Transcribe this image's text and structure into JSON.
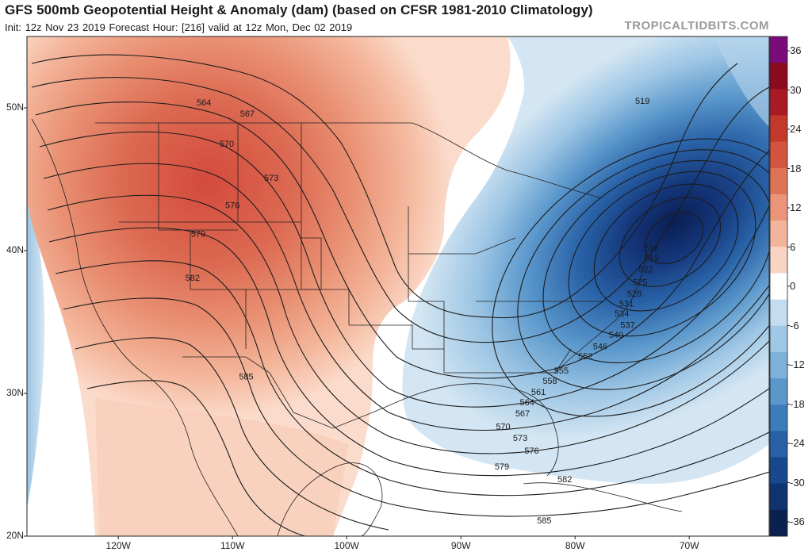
{
  "header": {
    "title": "GFS 500mb Geopotential Height & Anomaly (dam) (based on CFSR 1981-2010 Climatology)",
    "subtitle": "Init: 12z Nov 23 2019   Forecast Hour: [216]   valid at 12z Mon, Dec 02 2019",
    "credit": "TROPICALTIDBITS.COM"
  },
  "map": {
    "extent": {
      "lon_min": -128,
      "lon_max": -63,
      "lat_min": 20,
      "lat_max": 55
    },
    "lat_labels": [
      {
        "text": "50N",
        "lat": 50
      },
      {
        "text": "40N",
        "lat": 40
      },
      {
        "text": "30N",
        "lat": 30
      },
      {
        "text": "20N",
        "lat": 20
      }
    ],
    "lon_labels": [
      {
        "text": "120W",
        "lon": -120
      },
      {
        "text": "110W",
        "lon": -110
      },
      {
        "text": "100W",
        "lon": -100
      },
      {
        "text": "90W",
        "lon": -90
      },
      {
        "text": "80W",
        "lon": -80
      },
      {
        "text": "70W",
        "lon": -70
      }
    ],
    "height_contour_labels": [
      {
        "text": "564",
        "lon": -112.5,
        "lat": 50.4
      },
      {
        "text": "567",
        "lon": -108.7,
        "lat": 49.6
      },
      {
        "text": "570",
        "lon": -110.5,
        "lat": 47.5
      },
      {
        "text": "573",
        "lon": -106.6,
        "lat": 45.1
      },
      {
        "text": "576",
        "lon": -110.0,
        "lat": 43.2
      },
      {
        "text": "579",
        "lon": -113.0,
        "lat": 41.2
      },
      {
        "text": "582",
        "lon": -113.5,
        "lat": 38.1
      },
      {
        "text": "585",
        "lon": -108.8,
        "lat": 31.2
      },
      {
        "text": "519",
        "lon": -74.1,
        "lat": 50.5
      },
      {
        "text": "516",
        "lon": -73.3,
        "lat": 40.2
      },
      {
        "text": "519",
        "lon": -73.3,
        "lat": 39.5
      },
      {
        "text": "522",
        "lon": -73.8,
        "lat": 38.7
      },
      {
        "text": "525",
        "lon": -74.3,
        "lat": 37.8
      },
      {
        "text": "528",
        "lon": -74.8,
        "lat": 37.0
      },
      {
        "text": "531",
        "lon": -75.5,
        "lat": 36.3
      },
      {
        "text": "534",
        "lon": -75.9,
        "lat": 35.6
      },
      {
        "text": "537",
        "lon": -75.4,
        "lat": 34.8
      },
      {
        "text": "540",
        "lon": -76.4,
        "lat": 34.1
      },
      {
        "text": "546",
        "lon": -77.8,
        "lat": 33.3
      },
      {
        "text": "552",
        "lon": -79.1,
        "lat": 32.6
      },
      {
        "text": "555",
        "lon": -81.2,
        "lat": 31.6
      },
      {
        "text": "558",
        "lon": -82.2,
        "lat": 30.9
      },
      {
        "text": "561",
        "lon": -83.2,
        "lat": 30.1
      },
      {
        "text": "564",
        "lon": -84.2,
        "lat": 29.4
      },
      {
        "text": "567",
        "lon": -84.6,
        "lat": 28.6
      },
      {
        "text": "570",
        "lon": -86.3,
        "lat": 27.7
      },
      {
        "text": "573",
        "lon": -84.8,
        "lat": 26.9
      },
      {
        "text": "576",
        "lon": -83.8,
        "lat": 26.0
      },
      {
        "text": "579",
        "lon": -86.4,
        "lat": 24.9
      },
      {
        "text": "582",
        "lon": -80.9,
        "lat": 24.0
      },
      {
        "text": "585",
        "lon": -82.7,
        "lat": 21.1
      }
    ]
  },
  "colorbar": {
    "labels": [
      "36",
      "30",
      "24",
      "18",
      "12",
      "6",
      "0",
      "-6",
      "-12",
      "-18",
      "-24",
      "-30",
      "-36"
    ],
    "colors": [
      "#7a0b7a",
      "#8b0a1e",
      "#a91a24",
      "#c2392c",
      "#d3553f",
      "#df7356",
      "#eb9479",
      "#f3b49c",
      "#f9d4c2",
      "#ffffff",
      "#c4dcef",
      "#a0c8e6",
      "#7db1da",
      "#5a97cb",
      "#3d7cbb",
      "#2760a5",
      "#17478c",
      "#0e3370",
      "#0a2150"
    ]
  }
}
